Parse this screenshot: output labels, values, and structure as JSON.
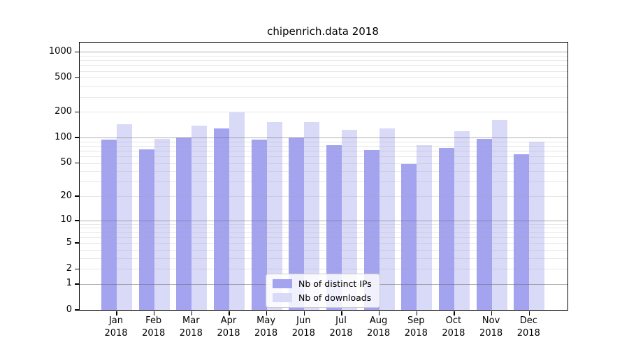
{
  "chart_data": {
    "type": "bar",
    "title": "chipenrich.data 2018",
    "categories": [
      "Jan",
      "Feb",
      "Mar",
      "Apr",
      "May",
      "Jun",
      "Jul",
      "Aug",
      "Sep",
      "Oct",
      "Nov",
      "Dec"
    ],
    "category_year": "2018",
    "series": [
      {
        "name": "Nb of distinct IPs",
        "color": "#a3a3f0",
        "values": [
          94,
          72,
          101,
          129,
          95,
          100,
          81,
          71,
          49,
          75,
          96,
          64
        ]
      },
      {
        "name": "Nb of downloads",
        "color": "#d9d9f8",
        "values": [
          143,
          96,
          137,
          197,
          152,
          152,
          123,
          129,
          82,
          118,
          161,
          89
        ]
      }
    ],
    "yticks": [
      0,
      1,
      2,
      5,
      10,
      20,
      50,
      100,
      200,
      500,
      1000
    ],
    "y_scale": "log1p",
    "ylim": [
      0,
      1285
    ],
    "grid": "on",
    "legend_position": "bottom-center-inside",
    "axis_color": "#000000",
    "major_grid_color": "#8c8c8c",
    "minor_grid_color": "#dcdcdc"
  }
}
